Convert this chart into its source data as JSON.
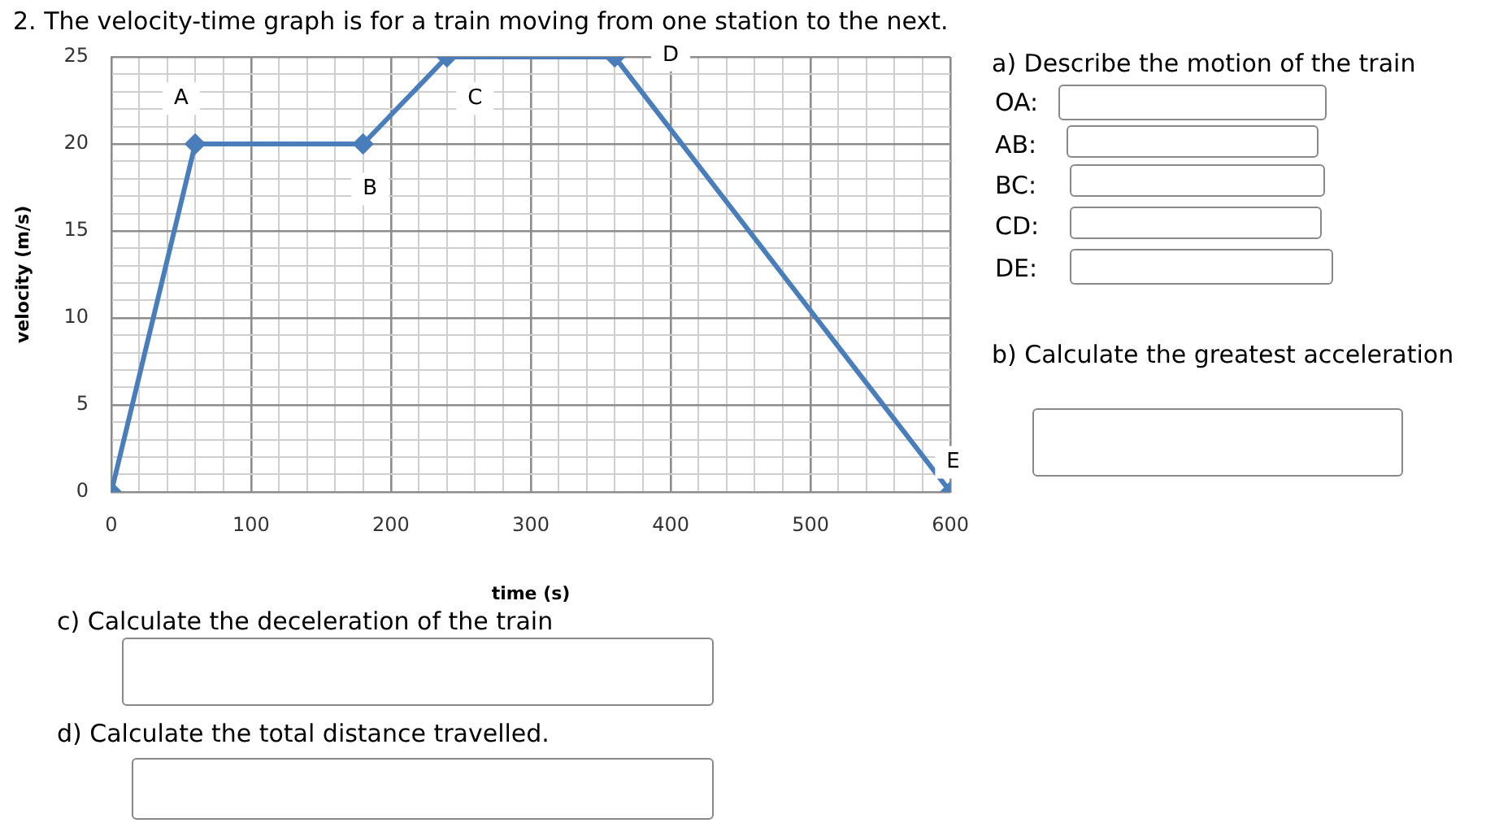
{
  "chart_data": {
    "type": "line",
    "title": "2. The velocity-time graph is for a train moving from one station to the next.",
    "xlabel": "time (s)",
    "ylabel": "velocity (m/s)",
    "x": [
      0,
      60,
      180,
      240,
      360,
      600
    ],
    "series": [
      {
        "color": "#4a7ebb",
        "values": [
          0,
          20,
          20,
          25,
          25,
          0
        ]
      }
    ],
    "xlim": [
      0,
      600
    ],
    "xticks": [
      0,
      {
        "value": 20,
        "label": null
      },
      {
        "value": 40,
        "label": null
      },
      {
        "value": 60,
        "label": null
      },
      {
        "value": 80,
        "label": null
      },
      100,
      {
        "value": 120,
        "label": null
      },
      {
        "value": 140,
        "label": null
      },
      {
        "value": 160,
        "label": null
      },
      {
        "value": 180,
        "label": null
      },
      200,
      {
        "value": 220,
        "label": null
      },
      {
        "value": 240,
        "label": null
      },
      {
        "value": 260,
        "label": null
      },
      {
        "value": 280,
        "label": null
      },
      300,
      {
        "value": 320,
        "label": null
      },
      {
        "value": 340,
        "label": null
      },
      {
        "value": 360,
        "label": null
      },
      {
        "value": 380,
        "label": null
      },
      400,
      {
        "value": 420,
        "label": null
      },
      {
        "value": 440,
        "label": null
      },
      {
        "value": 460,
        "label": null
      },
      {
        "value": 480,
        "label": null
      },
      500,
      {
        "value": 520,
        "label": null
      },
      {
        "value": 540,
        "label": null
      },
      {
        "value": 560,
        "label": null
      },
      {
        "value": 580,
        "label": null
      },
      600
    ],
    "ylim": [
      0,
      25
    ],
    "yticks": [
      0,
      {
        "value": 1,
        "label": null
      },
      {
        "value": 2,
        "label": null
      },
      {
        "value": 3,
        "label": null
      },
      {
        "value": 4,
        "label": null
      },
      5,
      {
        "value": 6,
        "label": null
      },
      {
        "value": 7,
        "label": null
      },
      {
        "value": 8,
        "label": null
      },
      {
        "value": 9,
        "label": null
      },
      10,
      {
        "value": 11,
        "label": null
      },
      {
        "value": 12,
        "label": null
      },
      {
        "value": 13,
        "label": null
      },
      {
        "value": 14,
        "label": null
      },
      15,
      {
        "value": 16,
        "label": null
      },
      {
        "value": 17,
        "label": null
      },
      {
        "value": 18,
        "label": null
      },
      {
        "value": 19,
        "label": null
      },
      20,
      {
        "value": 21,
        "label": null
      },
      {
        "value": 22,
        "label": null
      },
      {
        "value": 23,
        "label": null
      },
      {
        "value": 24,
        "label": null
      },
      25
    ],
    "grid": true,
    "legend": false,
    "marker": "diamond",
    "line_style": "solid",
    "annotations": [
      {
        "text": "A",
        "x": 50,
        "y": 22.6
      },
      {
        "text": "B",
        "x": 185,
        "y": 17.4
      },
      {
        "text": "C",
        "x": 260,
        "y": 22.6
      },
      {
        "text": "D",
        "x": 400,
        "y": 25.1
      },
      {
        "text": "E",
        "x": 602,
        "y": 1.7
      },
      "a) Describe the motion of the train",
      "OA:",
      "AB:",
      "BC:",
      "CD:",
      "DE:",
      "b) Calculate the greatest acceleration",
      "c) Calculate the deceleration of the train",
      "d) Calculate the total distance travelled."
    ]
  }
}
